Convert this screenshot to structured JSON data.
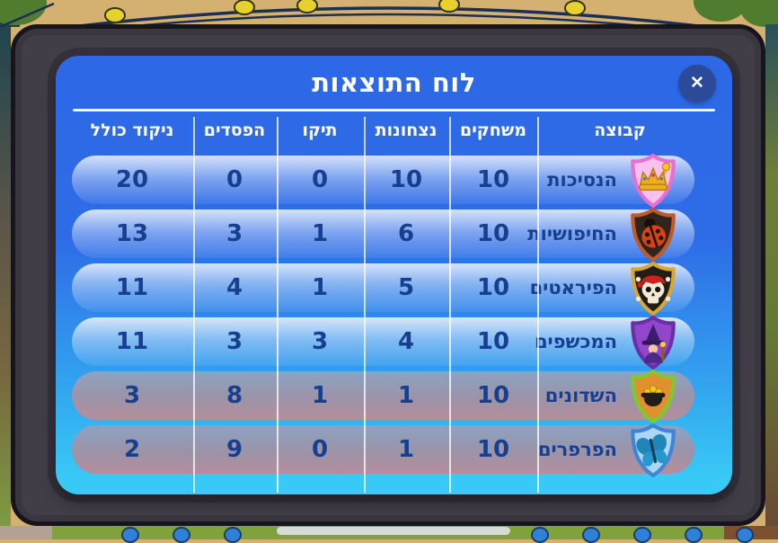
{
  "window": {
    "title": "לוח התוצאות",
    "close_glyph": "✕"
  },
  "colors": {
    "panel_top": "#2d68e6",
    "panel_bottom": "#39c9f6",
    "frame": "#413e48",
    "header_text": "#ffffff",
    "cell_text": "#173f8f",
    "losing_row_top": "#8ba3c2",
    "losing_row_bottom": "#b58e9b",
    "close_button_bg": "#2b4a99"
  },
  "table": {
    "columns": [
      {
        "key": "team",
        "label": "קבוצה"
      },
      {
        "key": "games",
        "label": "משחקים"
      },
      {
        "key": "wins",
        "label": "נצחונות"
      },
      {
        "key": "ties",
        "label": "תיקו"
      },
      {
        "key": "losses",
        "label": "הפסדים"
      },
      {
        "key": "total",
        "label": "ניקוד כולל"
      }
    ],
    "rows": [
      {
        "team": "הנסיכות",
        "badge": "princess-crown",
        "games": 10,
        "wins": 10,
        "ties": 0,
        "losses": 0,
        "total": 20,
        "zone": "top"
      },
      {
        "team": "החיפושיות",
        "badge": "ladybug",
        "games": 10,
        "wins": 6,
        "ties": 1,
        "losses": 3,
        "total": 13,
        "zone": "top"
      },
      {
        "team": "הפיראטים",
        "badge": "pirate-skull",
        "games": 10,
        "wins": 5,
        "ties": 1,
        "losses": 4,
        "total": 11,
        "zone": "top"
      },
      {
        "team": "המכשפים",
        "badge": "wizard",
        "games": 10,
        "wins": 4,
        "ties": 3,
        "losses": 3,
        "total": 11,
        "zone": "top"
      },
      {
        "team": "השדונים",
        "badge": "pot-of-gold",
        "games": 10,
        "wins": 1,
        "ties": 1,
        "losses": 8,
        "total": 3,
        "zone": "bottom"
      },
      {
        "team": "הפרפרים",
        "badge": "butterfly",
        "games": 10,
        "wins": 1,
        "ties": 0,
        "losses": 9,
        "total": 2,
        "zone": "bottom"
      }
    ]
  },
  "badges": {
    "princess-crown": {
      "shield": "#f8c2ec",
      "border": "#e86ed0",
      "emblem": "#eeb01e"
    },
    "ladybug": {
      "shield": "#30241c",
      "border": "#c05a26",
      "emblem": "#d84114"
    },
    "pirate-skull": {
      "shield": "#221d16",
      "border": "#d8a832",
      "emblem": "#f2ead6"
    },
    "wizard": {
      "shield": "#9146cc",
      "border": "#6a2fa6",
      "emblem": "#3a1e6e"
    },
    "pot-of-gold": {
      "shield": "#e28f2e",
      "border": "#7ec832",
      "emblem": "#221d18"
    },
    "butterfly": {
      "shield": "#abd6f4",
      "border": "#3f85d6",
      "emblem": "#1f86ba"
    }
  }
}
